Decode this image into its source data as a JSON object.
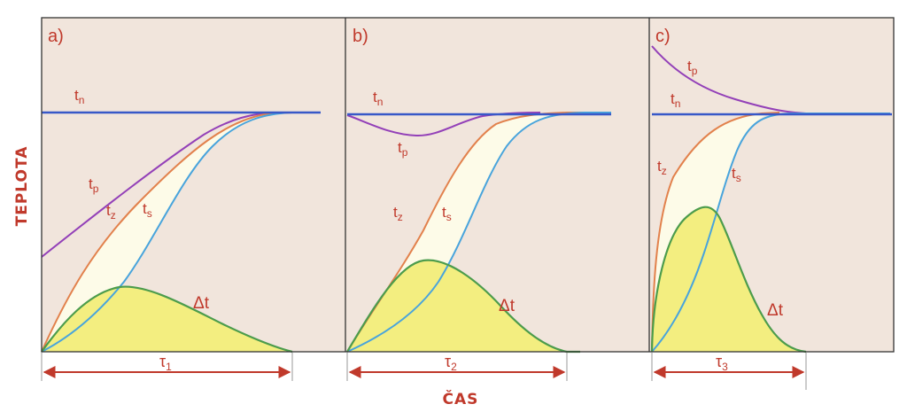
{
  "y_axis_title": "TEPLOTA",
  "x_axis_title": "ČAS",
  "colors": {
    "background": "#f1e5dc",
    "fill_between": "#fdfbe8",
    "fill_delta": "#f3ee80",
    "line_tn": "#3858c8",
    "line_tp": "#9340b8",
    "line_tz": "#e2814c",
    "line_ts": "#48a4dc",
    "line_delta": "#4c9c4c",
    "label_text": "#c0392b",
    "frame": "#333333"
  },
  "panels": [
    {
      "id": "a",
      "tag": "a)",
      "labels": {
        "tn": "t",
        "tn_sub": "n",
        "tp": "t",
        "tp_sub": "p",
        "tz": "t",
        "tz_sub": "z",
        "ts": "t",
        "ts_sub": "s",
        "delta": "Δt"
      },
      "tau": "τ",
      "tau_sub": "1"
    },
    {
      "id": "b",
      "tag": "b)",
      "labels": {
        "tn": "t",
        "tn_sub": "n",
        "tp": "t",
        "tp_sub": "p",
        "tz": "t",
        "tz_sub": "z",
        "ts": "t",
        "ts_sub": "s",
        "delta": "Δt"
      },
      "tau": "τ",
      "tau_sub": "2"
    },
    {
      "id": "c",
      "tag": "c)",
      "labels": {
        "tn": "t",
        "tn_sub": "n",
        "tp": "t",
        "tp_sub": "p",
        "tz": "t",
        "tz_sub": "z",
        "ts": "t",
        "ts_sub": "s",
        "delta": "Δt"
      },
      "tau": "τ",
      "tau_sub": "3"
    }
  ]
}
